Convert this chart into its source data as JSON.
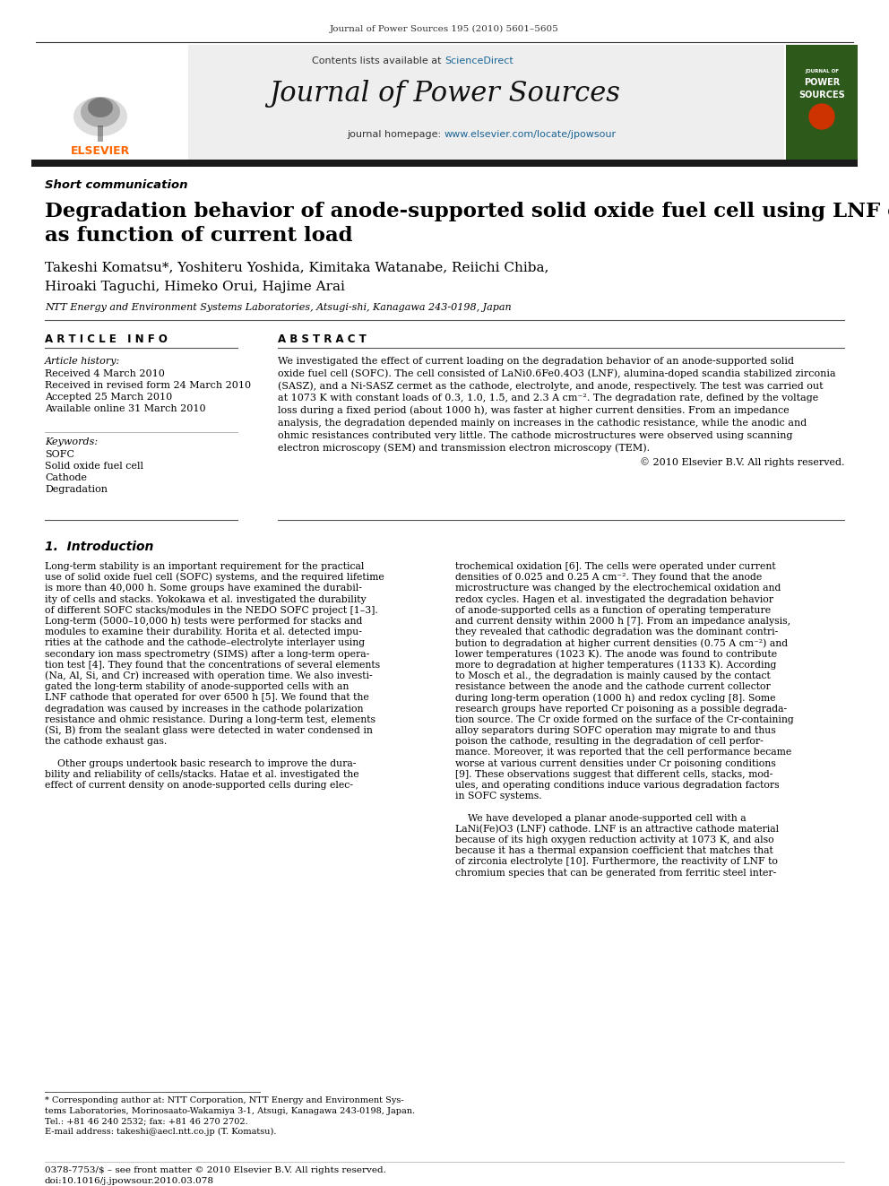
{
  "journal_ref": "Journal of Power Sources 195 (2010) 5601–5605",
  "contents_line": "Contents lists available at ScienceDirect",
  "sciencedirect_color": "#1a6496",
  "journal_title": "Journal of Power Sources",
  "homepage_line": "journal homepage: www.elsevier.com/locate/jpowsour",
  "homepage_url_color": "#1a6496",
  "section_label": "Short communication",
  "paper_title_line1": "Degradation behavior of anode-supported solid oxide fuel cell using LNF cathode",
  "paper_title_line2": "as function of current load",
  "authors_line1": "Takeshi Komatsu*, Yoshiteru Yoshida, Kimitaka Watanabe, Reiichi Chiba,",
  "authors_line2": "Hiroaki Taguchi, Himeko Orui, Hajime Arai",
  "affiliation": "NTT Energy and Environment Systems Laboratories, Atsugi-shi, Kanagawa 243-0198, Japan",
  "article_info_header": "A R T I C L E   I N F O",
  "abstract_header": "A B S T R A C T",
  "article_history_label": "Article history:",
  "received": "Received 4 March 2010",
  "received_revised": "Received in revised form 24 March 2010",
  "accepted": "Accepted 25 March 2010",
  "available": "Available online 31 March 2010",
  "keywords_label": "Keywords:",
  "kw1": "SOFC",
  "kw2": "Solid oxide fuel cell",
  "kw3": "Cathode",
  "kw4": "Degradation",
  "abstract_text": "We investigated the effect of current loading on the degradation behavior of an anode-supported solid\noxide fuel cell (SOFC). The cell consisted of LaNi0.6Fe0.4O3 (LNF), alumina-doped scandia stabilized zirconia\n(SASZ), and a Ni-SASZ cermet as the cathode, electrolyte, and anode, respectively. The test was carried out\nat 1073 K with constant loads of 0.3, 1.0, 1.5, and 2.3 A cm⁻². The degradation rate, defined by the voltage\nloss during a fixed period (about 1000 h), was faster at higher current densities. From an impedance\nanalysis, the degradation depended mainly on increases in the cathodic resistance, while the anodic and\nohmic resistances contributed very little. The cathode microstructures were observed using scanning\nelectron microscopy (SEM) and transmission electron microscopy (TEM).",
  "copyright": "© 2010 Elsevier B.V. All rights reserved.",
  "intro_header": "1.  Introduction",
  "intro_col1_para1": "Long-term stability is an important requirement for the practical\nuse of solid oxide fuel cell (SOFC) systems, and the required lifetime\nis more than 40,000 h. Some groups have examined the durabil-\nity of cells and stacks. Yokokawa et al. investigated the durability\nof different SOFC stacks/modules in the NEDO SOFC project [1–3].\nLong-term (5000–10,000 h) tests were performed for stacks and\nmodules to examine their durability. Horita et al. detected impu-\nrities at the cathode and the cathode–electrolyte interlayer using\nsecondary ion mass spectrometry (SIMS) after a long-term opera-\ntion test [4]. They found that the concentrations of several elements\n(Na, Al, Si, and Cr) increased with operation time. We also investi-\ngated the long-term stability of anode-supported cells with an\nLNF cathode that operated for over 6500 h [5]. We found that the\ndegradation was caused by increases in the cathode polarization\nresistance and ohmic resistance. During a long-term test, elements\n(Si, B) from the sealant glass were detected in water condensed in\nthe cathode exhaust gas.",
  "intro_col1_para2": "    Other groups undertook basic research to improve the dura-\nbility and reliability of cells/stacks. Hatae et al. investigated the\neffect of current density on anode-supported cells during elec-",
  "intro_col2_para1": "trochemical oxidation [6]. The cells were operated under current\ndensities of 0.025 and 0.25 A cm⁻². They found that the anode\nmicrostructure was changed by the electrochemical oxidation and\nredox cycles. Hagen et al. investigated the degradation behavior\nof anode-supported cells as a function of operating temperature\nand current density within 2000 h [7]. From an impedance analysis,\nthey revealed that cathodic degradation was the dominant contri-\nbution to degradation at higher current densities (0.75 A cm⁻²) and\nlower temperatures (1023 K). The anode was found to contribute\nmore to degradation at higher temperatures (1133 K). According\nto Mosch et al., the degradation is mainly caused by the contact\nresistance between the anode and the cathode current collector\nduring long-term operation (1000 h) and redox cycling [8]. Some\nresearch groups have reported Cr poisoning as a possible degrada-\ntion source. The Cr oxide formed on the surface of the Cr-containing\nalloy separators during SOFC operation may migrate to and thus\npoison the cathode, resulting in the degradation of cell perfor-\nmance. Moreover, it was reported that the cell performance became\nworse at various current densities under Cr poisoning conditions\n[9]. These observations suggest that different cells, stacks, mod-\nules, and operating conditions induce various degradation factors\nin SOFC systems.",
  "intro_col2_para2": "    We have developed a planar anode-supported cell with a\nLaNi(Fe)O3 (LNF) cathode. LNF is an attractive cathode material\nbecause of its high oxygen reduction activity at 1073 K, and also\nbecause it has a thermal expansion coefficient that matches that\nof zirconia electrolyte [10]. Furthermore, the reactivity of LNF to\nchromium species that can be generated from ferritic steel inter-",
  "footnote_line1": "* Corresponding author at: NTT Corporation, NTT Energy and Environment Sys-",
  "footnote_line2": "tems Laboratories, Morinosaato-Wakamiya 3-1, Atsugi, Kanagawa 243-0198, Japan.",
  "footnote_line3": "Tel.: +81 46 240 2532; fax: +81 46 270 2702.",
  "footnote_line4": "E-mail address: takeshi@aecl.ntt.co.jp (T. Komatsu).",
  "footer_line1": "0378-7753/$ – see front matter © 2010 Elsevier B.V. All rights reserved.",
  "footer_line2": "doi:10.1016/j.jpowsour.2010.03.078",
  "dark_bar_color": "#1a1a1a",
  "elsevier_orange": "#ff6600",
  "journal_cover_bg": "#2d5a1b",
  "page_bg": "#ffffff"
}
